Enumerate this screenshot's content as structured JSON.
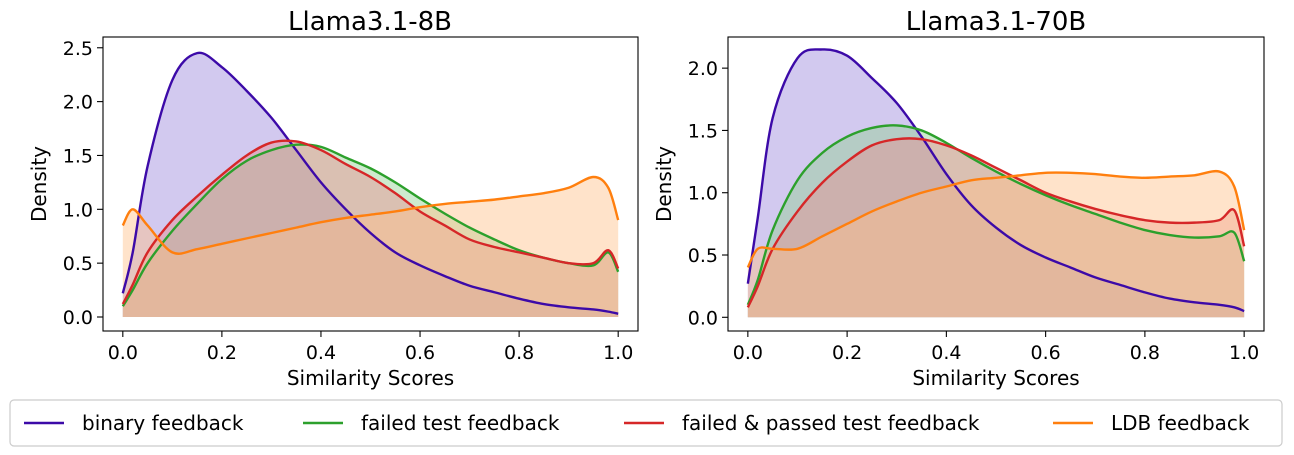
{
  "series_meta": [
    {
      "key": "binary",
      "name": "binary feedback",
      "color": "#3c0aa8",
      "fill": "#9b88dc"
    },
    {
      "key": "failed",
      "name": "failed test feedback",
      "color": "#2ca02c",
      "fill": "#92d192"
    },
    {
      "key": "passed",
      "name": "failed & passed test feedback",
      "color": "#d62728",
      "fill": "#e98f90"
    },
    {
      "key": "ldb",
      "name": "LDB feedback",
      "color": "#ff7f0e",
      "fill": "#ffc28a"
    }
  ],
  "chart_data": [
    {
      "type": "area",
      "title": "Llama3.1-8B",
      "xlabel": "Similarity Scores",
      "ylabel": "Density",
      "xlim": [
        -0.04,
        1.04
      ],
      "ylim": [
        -0.13,
        2.6
      ],
      "xticks": [
        0.0,
        0.2,
        0.4,
        0.6,
        0.8,
        1.0
      ],
      "xtick_labels": [
        "0.0",
        "0.2",
        "0.4",
        "0.6",
        "0.8",
        "1.0"
      ],
      "yticks": [
        0.0,
        0.5,
        1.0,
        1.5,
        2.0,
        2.5
      ],
      "ytick_labels": [
        "0.0",
        "0.5",
        "1.0",
        "1.5",
        "2.0",
        "2.5"
      ],
      "x": [
        0.0,
        0.02,
        0.05,
        0.1,
        0.15,
        0.2,
        0.25,
        0.3,
        0.35,
        0.4,
        0.45,
        0.5,
        0.55,
        0.6,
        0.65,
        0.7,
        0.75,
        0.8,
        0.85,
        0.9,
        0.95,
        0.98,
        1.0
      ],
      "series": [
        {
          "name": "binary feedback",
          "values": [
            0.22,
            0.6,
            1.4,
            2.2,
            2.45,
            2.32,
            2.1,
            1.85,
            1.55,
            1.25,
            1.0,
            0.78,
            0.6,
            0.48,
            0.38,
            0.29,
            0.23,
            0.17,
            0.12,
            0.09,
            0.07,
            0.05,
            0.03
          ]
        },
        {
          "name": "failed test feedback",
          "values": [
            0.1,
            0.25,
            0.5,
            0.8,
            1.05,
            1.28,
            1.45,
            1.55,
            1.6,
            1.58,
            1.48,
            1.38,
            1.25,
            1.1,
            0.96,
            0.83,
            0.72,
            0.62,
            0.55,
            0.5,
            0.48,
            0.6,
            0.42
          ]
        },
        {
          "name": "failed & passed test feedback",
          "values": [
            0.12,
            0.3,
            0.6,
            0.9,
            1.12,
            1.32,
            1.5,
            1.62,
            1.63,
            1.55,
            1.42,
            1.3,
            1.15,
            0.98,
            0.85,
            0.72,
            0.65,
            0.6,
            0.55,
            0.5,
            0.5,
            0.62,
            0.45
          ]
        },
        {
          "name": "LDB feedback",
          "values": [
            0.85,
            1.0,
            0.85,
            0.6,
            0.63,
            0.68,
            0.73,
            0.78,
            0.83,
            0.88,
            0.92,
            0.95,
            0.98,
            1.02,
            1.05,
            1.07,
            1.09,
            1.12,
            1.15,
            1.2,
            1.3,
            1.2,
            0.9
          ]
        }
      ]
    },
    {
      "type": "area",
      "title": "Llama3.1-70B",
      "xlabel": "Similarity Scores",
      "ylabel": "Density",
      "xlim": [
        -0.04,
        1.04
      ],
      "ylim": [
        -0.11,
        2.25
      ],
      "xticks": [
        0.0,
        0.2,
        0.4,
        0.6,
        0.8,
        1.0
      ],
      "xtick_labels": [
        "0.0",
        "0.2",
        "0.4",
        "0.6",
        "0.8",
        "1.0"
      ],
      "yticks": [
        0.0,
        0.5,
        1.0,
        1.5,
        2.0
      ],
      "ytick_labels": [
        "0.0",
        "0.5",
        "1.0",
        "1.5",
        "2.0"
      ],
      "x": [
        0.0,
        0.02,
        0.05,
        0.1,
        0.15,
        0.2,
        0.25,
        0.3,
        0.35,
        0.4,
        0.45,
        0.5,
        0.55,
        0.6,
        0.65,
        0.7,
        0.75,
        0.8,
        0.85,
        0.9,
        0.95,
        0.98,
        1.0
      ],
      "series": [
        {
          "name": "binary feedback",
          "values": [
            0.27,
            0.8,
            1.6,
            2.08,
            2.15,
            2.1,
            1.92,
            1.72,
            1.45,
            1.15,
            0.9,
            0.72,
            0.58,
            0.48,
            0.4,
            0.32,
            0.26,
            0.2,
            0.15,
            0.12,
            0.1,
            0.08,
            0.05
          ]
        },
        {
          "name": "failed test feedback",
          "values": [
            0.1,
            0.3,
            0.7,
            1.1,
            1.32,
            1.45,
            1.52,
            1.54,
            1.5,
            1.4,
            1.28,
            1.17,
            1.07,
            0.98,
            0.9,
            0.83,
            0.76,
            0.7,
            0.66,
            0.64,
            0.65,
            0.68,
            0.45
          ]
        },
        {
          "name": "failed & passed test feedback",
          "values": [
            0.08,
            0.25,
            0.55,
            0.85,
            1.08,
            1.25,
            1.38,
            1.43,
            1.43,
            1.38,
            1.3,
            1.2,
            1.1,
            1.0,
            0.93,
            0.87,
            0.82,
            0.78,
            0.76,
            0.76,
            0.78,
            0.86,
            0.57
          ]
        },
        {
          "name": "LDB feedback",
          "values": [
            0.4,
            0.55,
            0.55,
            0.55,
            0.65,
            0.75,
            0.85,
            0.93,
            1.0,
            1.05,
            1.1,
            1.12,
            1.14,
            1.16,
            1.16,
            1.15,
            1.13,
            1.12,
            1.13,
            1.14,
            1.17,
            1.05,
            0.7
          ]
        }
      ]
    }
  ]
}
